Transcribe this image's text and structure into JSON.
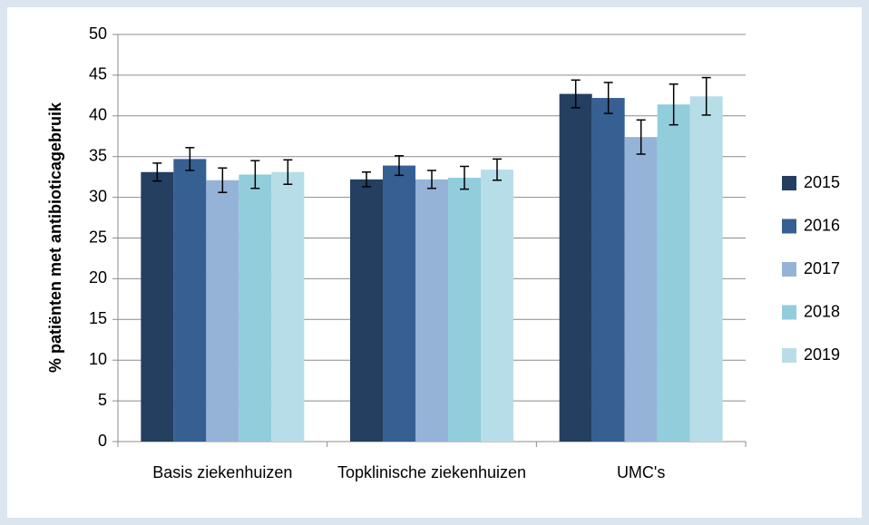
{
  "chart_data": {
    "type": "bar",
    "y_label": "% patiënten met antibioticagebruik",
    "categories": [
      "Basis ziekenhuizen",
      "Topklinische ziekenhuizen",
      "UMC's"
    ],
    "series": [
      {
        "name": "2015",
        "color": "#243f60",
        "values": [
          33.1,
          32.2,
          42.7
        ],
        "errors": [
          1.1,
          0.9,
          1.7
        ]
      },
      {
        "name": "2016",
        "color": "#366092",
        "values": [
          34.7,
          33.9,
          42.2
        ],
        "errors": [
          1.4,
          1.2,
          1.9
        ]
      },
      {
        "name": "2017",
        "color": "#95b3d7",
        "values": [
          32.1,
          32.2,
          37.4
        ],
        "errors": [
          1.5,
          1.1,
          2.1
        ]
      },
      {
        "name": "2018",
        "color": "#92cddc",
        "values": [
          32.8,
          32.4,
          41.4
        ],
        "errors": [
          1.7,
          1.4,
          2.5
        ]
      },
      {
        "name": "2019",
        "color": "#b7dee8",
        "values": [
          33.1,
          33.4,
          42.4
        ],
        "errors": [
          1.5,
          1.3,
          2.3
        ]
      }
    ],
    "ylim": [
      0,
      50
    ],
    "yticks": [
      0,
      5,
      10,
      15,
      20,
      25,
      30,
      35,
      40,
      45,
      50
    ],
    "grid": true,
    "legend": "right"
  }
}
